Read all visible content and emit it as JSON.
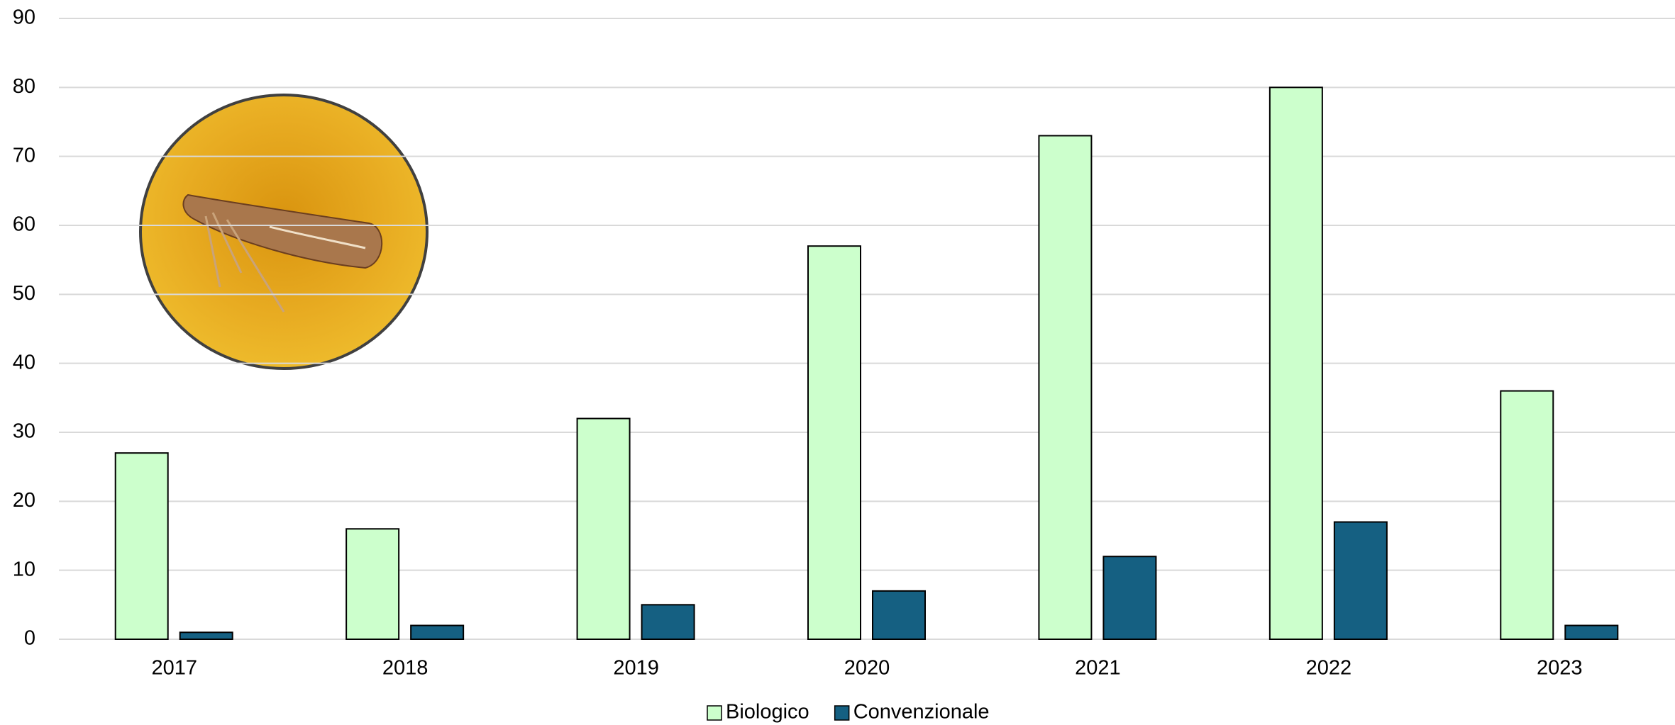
{
  "chart_data": {
    "type": "bar",
    "categories": [
      "2017",
      "2018",
      "2019",
      "2020",
      "2021",
      "2022",
      "2023"
    ],
    "series": [
      {
        "name": "Biologico",
        "color": "#ccffcc",
        "values": [
          27,
          16,
          32,
          57,
          73,
          80,
          36
        ]
      },
      {
        "name": "Convenzionale",
        "color": "#156082",
        "values": [
          1,
          2,
          5,
          7,
          12,
          17,
          2
        ]
      }
    ],
    "ylim": [
      0,
      90
    ],
    "yticks": [
      0,
      10,
      20,
      30,
      40,
      50,
      60,
      70,
      80,
      90
    ],
    "grid": true,
    "legend": "bottom"
  }
}
